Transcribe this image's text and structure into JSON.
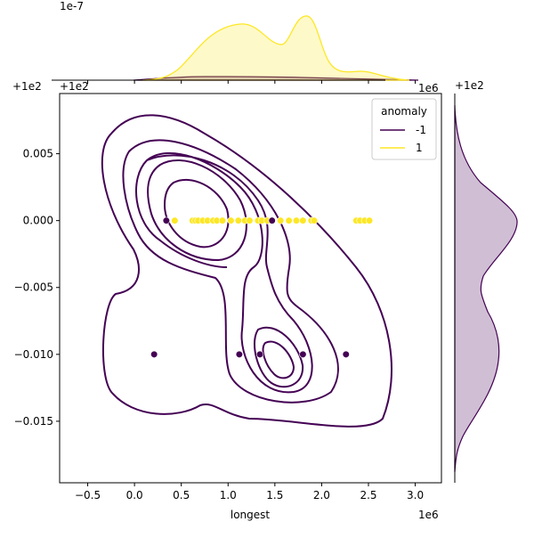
{
  "chart_data": {
    "type": "scatter",
    "subtype": "jointplot with kde contours and marginal kde",
    "xlabel": "longest",
    "ylabel": "",
    "x_offset_label": "1e6",
    "y_offset_label": "+1e2",
    "top_x_offset_label": "+1e2",
    "top_multiplier_label": "1e-7",
    "top_right_offset_label": "1e6",
    "right_offset_label": "+1e2",
    "xlim": [
      -0.8,
      3.28
    ],
    "ylim": [
      -0.0196,
      0.0095
    ],
    "xticks": [
      "−0.5",
      "0.0",
      "0.5",
      "1.0",
      "1.5",
      "2.0",
      "2.5",
      "3.0"
    ],
    "xtick_values": [
      -0.5,
      0,
      0.5,
      1,
      1.5,
      2,
      2.5,
      3
    ],
    "yticks": [
      "0.005",
      "0.000",
      "−0.005",
      "−0.010",
      "−0.015"
    ],
    "ytick_values": [
      0.005,
      0,
      -0.005,
      -0.01,
      -0.015
    ],
    "legend": {
      "title": "anomaly",
      "placement": "upper-right",
      "entries": [
        {
          "label": "-1",
          "color": "#440154"
        },
        {
          "label": "1",
          "color": "#fde725"
        }
      ]
    },
    "series": [
      {
        "name": "-1",
        "color": "#440154",
        "points": [
          [
            0.34,
            0
          ],
          [
            1.47,
            0
          ],
          [
            0.21,
            -0.01
          ],
          [
            1.12,
            -0.01
          ],
          [
            1.34,
            -0.01
          ],
          [
            1.8,
            -0.01
          ],
          [
            2.26,
            -0.01
          ]
        ]
      },
      {
        "name": "1",
        "color": "#fde725",
        "points": [
          [
            0.43,
            0
          ],
          [
            0.62,
            0
          ],
          [
            0.65,
            0
          ],
          [
            0.68,
            0
          ],
          [
            0.73,
            0
          ],
          [
            0.78,
            0
          ],
          [
            0.84,
            0
          ],
          [
            0.88,
            0
          ],
          [
            0.94,
            0
          ],
          [
            1.03,
            0
          ],
          [
            1.11,
            0
          ],
          [
            1.18,
            0
          ],
          [
            1.23,
            0
          ],
          [
            1.32,
            0
          ],
          [
            1.36,
            0
          ],
          [
            1.42,
            0
          ],
          [
            1.56,
            0
          ],
          [
            1.65,
            0
          ],
          [
            1.73,
            0
          ],
          [
            1.8,
            0
          ],
          [
            1.89,
            0
          ],
          [
            1.92,
            0
          ],
          [
            2.37,
            0
          ],
          [
            2.41,
            0
          ],
          [
            2.46,
            0
          ],
          [
            2.51,
            0
          ]
        ]
      }
    ]
  }
}
